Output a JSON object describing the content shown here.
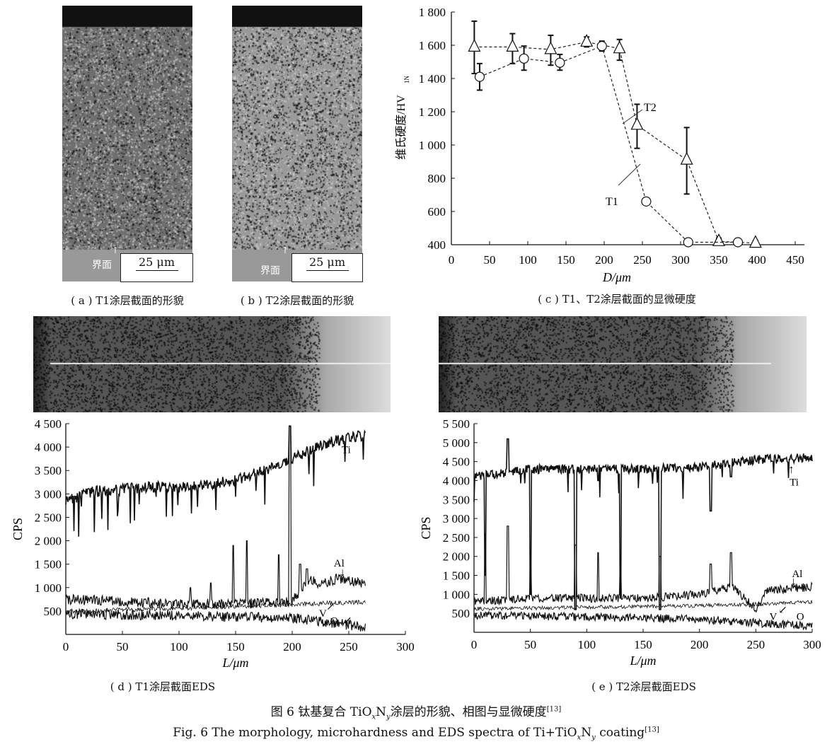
{
  "panels": {
    "a": {
      "caption": "( a ) T1涂层截面的形貌",
      "interface_label": "界面",
      "scale_label": "25 μm"
    },
    "b": {
      "caption": "( b ) T2涂层截面的形貌",
      "interface_label": "界面",
      "scale_label": "25 μm"
    },
    "c": {
      "caption": "( c ) T1、T2涂层截面的显微硬度"
    },
    "d": {
      "caption": "( d ) T1涂层截面EDS"
    },
    "e": {
      "caption": "( e ) T2涂层截面EDS"
    }
  },
  "figure_caption": {
    "zh_prefix": "图 6   钛基复合 TiO",
    "zh_x": "x",
    "zh_n": "N",
    "zh_y": "y",
    "zh_suffix": "涂层的形貌、相图与显微硬度",
    "zh_ref": "[13]",
    "en_prefix": "Fig. 6   The morphology, microhardness and EDS spectra of Ti+TiO",
    "en_x": "x",
    "en_n": "N",
    "en_y": "y",
    "en_suffix": " coating",
    "en_ref": "[13]"
  },
  "chart_data": [
    {
      "id": "c",
      "type": "scatter",
      "xlabel": "D/μm",
      "ylabel": "维氏硬度/HV",
      "ylabel_sub": "1N",
      "xlim": [
        0,
        450
      ],
      "ylim": [
        400,
        1800
      ],
      "xticks": [
        0,
        50,
        100,
        150,
        200,
        250,
        300,
        350,
        400,
        450
      ],
      "yticks": [
        400,
        600,
        800,
        1000,
        1200,
        1400,
        1600,
        1800
      ],
      "ytick_labels": [
        "400",
        "600",
        "800",
        "1 000",
        "1 200",
        "1 400",
        "1 600",
        "1 800"
      ],
      "grid": false,
      "series": [
        {
          "name": "T2",
          "marker": "triangle",
          "line": "dashed",
          "points": [
            [
              30,
              1590,
              1430,
              1745
            ],
            [
              80,
              1590,
              1490,
              1670
            ],
            [
              130,
              1575,
              1480,
              1660
            ],
            [
              177,
              1620,
              1590,
              1650
            ],
            [
              220,
              1580,
              1510,
              1635
            ],
            [
              243,
              1120,
              980,
              1245
            ],
            [
              308,
              910,
              705,
              1105
            ],
            [
              350,
              420,
              410,
              440
            ],
            [
              398,
              410,
              400,
              425
            ]
          ]
        },
        {
          "name": "T1",
          "marker": "circle",
          "line": "dashed",
          "points": [
            [
              37,
              1410,
              1330,
              1490
            ],
            [
              95,
              1520,
              1450,
              1595
            ],
            [
              142,
              1495,
              1450,
              1545
            ],
            [
              197,
              1595,
              1565,
              1625
            ],
            [
              255,
              660,
              650,
              670
            ],
            [
              310,
              415,
              405,
              425
            ],
            [
              375,
              415,
              405,
              425
            ]
          ]
        }
      ]
    },
    {
      "id": "d",
      "type": "line",
      "xlabel": "L/μm",
      "ylabel": "CPS",
      "xlim": [
        0,
        300
      ],
      "ylim": [
        0,
        4500
      ],
      "xticks": [
        0,
        50,
        100,
        150,
        200,
        250,
        300
      ],
      "yticks": [
        500,
        1000,
        1500,
        2000,
        2500,
        3000,
        3500,
        4000,
        4500
      ],
      "ytick_labels": [
        "500",
        "1 000",
        "1 500",
        "2 000",
        "2 500",
        "3 000",
        "3 500",
        "4 000",
        "4 500"
      ],
      "x_end": 265,
      "series": [
        {
          "name": "Ti",
          "x": [
            0,
            25,
            50,
            75,
            100,
            125,
            150,
            175,
            200,
            225,
            250,
            265
          ],
          "values": [
            2850,
            3050,
            3100,
            3150,
            3150,
            3200,
            3300,
            3500,
            3750,
            4050,
            4200,
            4250
          ]
        },
        {
          "name": "Al",
          "x": [
            0,
            50,
            100,
            150,
            200,
            215,
            225,
            240,
            265
          ],
          "values": [
            750,
            700,
            650,
            650,
            700,
            1200,
            1050,
            1200,
            1050
          ]
        },
        {
          "name": "V",
          "x": [
            0,
            50,
            100,
            150,
            200,
            250,
            265
          ],
          "values": [
            500,
            520,
            560,
            600,
            640,
            680,
            700
          ]
        },
        {
          "name": "O",
          "x": [
            0,
            50,
            100,
            150,
            200,
            250,
            265
          ],
          "values": [
            450,
            420,
            400,
            380,
            350,
            200,
            150
          ]
        }
      ],
      "annotations": [
        "Ti",
        "Al",
        "V",
        "O"
      ]
    },
    {
      "id": "e",
      "type": "line",
      "xlabel": "L/μm",
      "ylabel": "CPS",
      "xlim": [
        0,
        300
      ],
      "ylim": [
        0,
        5500
      ],
      "xticks": [
        0,
        50,
        100,
        150,
        200,
        250,
        300
      ],
      "yticks": [
        500,
        1000,
        1500,
        2000,
        2500,
        3000,
        3500,
        4000,
        4500,
        5000,
        5500
      ],
      "ytick_labels": [
        "500",
        "1 000",
        "1 500",
        "2 000",
        "2 500",
        "3 000",
        "3 500",
        "4 000",
        "4 500",
        "5 000",
        "5 500"
      ],
      "x_end": 300,
      "series": [
        {
          "name": "Ti",
          "x": [
            0,
            50,
            100,
            150,
            200,
            250,
            300
          ],
          "values": [
            4100,
            4300,
            4300,
            4300,
            4350,
            4550,
            4600
          ]
        },
        {
          "name": "Al",
          "x": [
            0,
            50,
            100,
            150,
            200,
            230,
            250,
            260,
            300
          ],
          "values": [
            800,
            900,
            900,
            900,
            1000,
            1200,
            600,
            1100,
            1200
          ]
        },
        {
          "name": "V",
          "x": [
            0,
            50,
            100,
            150,
            200,
            250,
            300
          ],
          "values": [
            620,
            640,
            660,
            680,
            700,
            740,
            800
          ]
        },
        {
          "name": "O",
          "x": [
            0,
            50,
            100,
            150,
            200,
            250,
            300
          ],
          "values": [
            450,
            420,
            400,
            380,
            350,
            250,
            150
          ]
        }
      ],
      "annotations": [
        "Ti",
        "Al",
        "V",
        "O"
      ]
    }
  ]
}
